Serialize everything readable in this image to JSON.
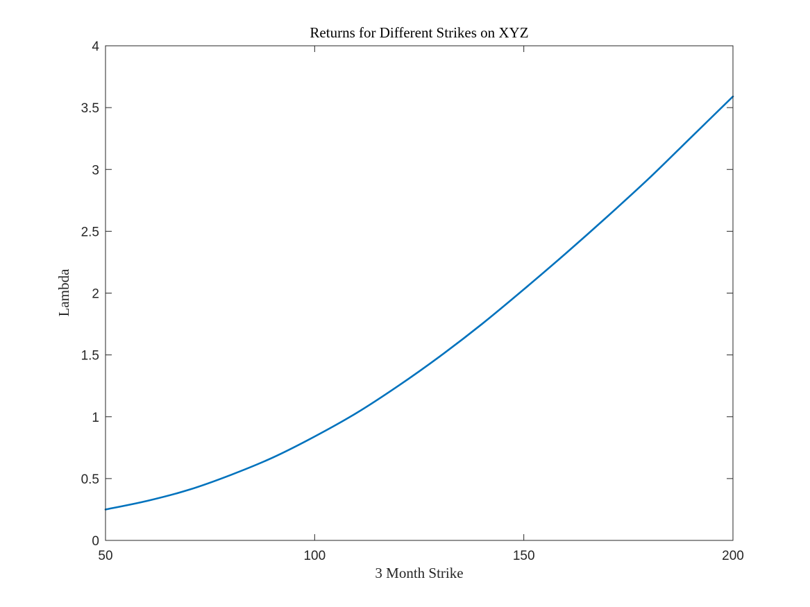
{
  "chart_data": {
    "type": "line",
    "title": "Returns for Different Strikes on XYZ",
    "xlabel": "3 Month Strike",
    "ylabel": "Lambda",
    "xlim": [
      50,
      200
    ],
    "ylim": [
      0,
      4
    ],
    "x_ticks": [
      50,
      100,
      150,
      200
    ],
    "y_ticks": [
      0,
      0.5,
      1,
      1.5,
      2,
      2.5,
      3,
      3.5,
      4
    ],
    "x_tick_labels": [
      "50",
      "100",
      "150",
      "200"
    ],
    "y_tick_labels": [
      "0",
      "0.5",
      "1",
      "1.5",
      "2",
      "2.5",
      "3",
      "3.5",
      "4"
    ],
    "grid": false,
    "series": [
      {
        "color": "#0072BD",
        "x": [
          50,
          60,
          70,
          80,
          90,
          100,
          110,
          120,
          130,
          140,
          150,
          160,
          170,
          180,
          190,
          200
        ],
        "y": [
          0.25,
          0.32,
          0.41,
          0.53,
          0.67,
          0.84,
          1.03,
          1.25,
          1.49,
          1.75,
          2.03,
          2.32,
          2.62,
          2.93,
          3.26,
          3.59
        ]
      }
    ]
  }
}
